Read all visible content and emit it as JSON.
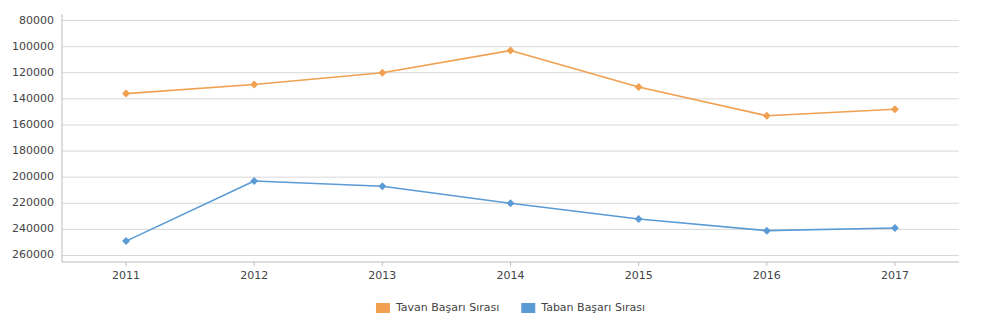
{
  "chart_data": {
    "type": "line",
    "x": [
      2011,
      2012,
      2013,
      2014,
      2015,
      2016,
      2017
    ],
    "xlim": [
      2010.5,
      2017.5
    ],
    "xticks": [
      2011,
      2012,
      2013,
      2014,
      2015,
      2016,
      2017
    ],
    "series": [
      {
        "name": "Tavan Başarı Sırası",
        "color": "#f0a050",
        "values": [
          136000,
          129000,
          120000,
          103000,
          131000,
          153000,
          148000
        ]
      },
      {
        "name": "Taban Başarı Sırası",
        "color": "#5b9bd5",
        "values": [
          249000,
          203000,
          207000,
          220000,
          232000,
          241000,
          239000
        ]
      }
    ],
    "ylim": [
      265000,
      75000
    ],
    "yticks": [
      80000,
      100000,
      120000,
      140000,
      160000,
      180000,
      200000,
      220000,
      240000,
      260000
    ],
    "grid": true,
    "legend": "bottom",
    "marker": "diamond"
  }
}
